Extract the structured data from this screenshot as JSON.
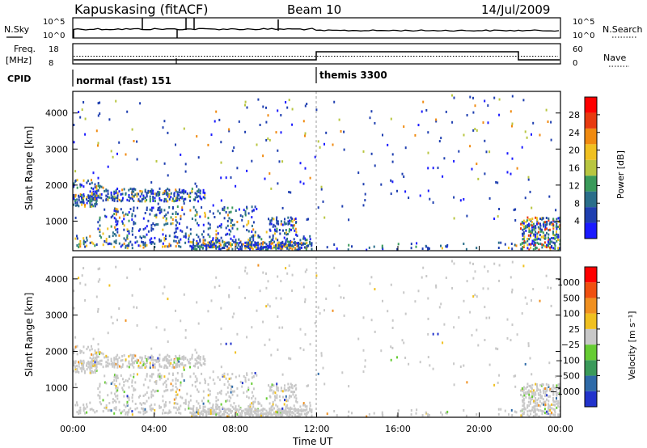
{
  "header": {
    "site": "Kapuskasing (fitACF)",
    "beam": "Beam 10",
    "date": "14/Jul/2009"
  },
  "panels": {
    "noise": {
      "left_label": "N.Sky",
      "right_label": "N.Search",
      "ticks_left": [
        "10^5",
        "10^0"
      ],
      "ticks_right": [
        "10^5",
        "10^0"
      ]
    },
    "freq": {
      "left_label_1": "Freq.",
      "left_label_2": "[MHz]",
      "right_label": "Nave",
      "ticks_left": [
        "18",
        "8"
      ],
      "ticks_right": [
        "60",
        "0"
      ]
    },
    "cpid": {
      "label": "CPID",
      "modes": [
        "normal (fast) 151",
        "themis 3300"
      ]
    }
  },
  "chart_data": [
    {
      "type": "heatmap",
      "name": "power",
      "ylabel": "Slant Range [km]",
      "yticks": [
        "4000",
        "3000",
        "2000",
        "1000"
      ],
      "ylim": [
        180,
        4600
      ],
      "xlim": [
        0,
        24
      ],
      "colorbar": {
        "label": "Power [dB]",
        "ticks": [
          "28",
          "24",
          "20",
          "16",
          "12",
          "8",
          "4"
        ],
        "range": [
          0,
          30
        ],
        "colors": [
          "#1a1aff",
          "#1f3fb0",
          "#2a6e8a",
          "#3a9a5a",
          "#b8c640",
          "#f0c020",
          "#f08a10",
          "#e83a10",
          "#ff0000"
        ]
      }
    },
    {
      "type": "heatmap",
      "name": "velocity",
      "ylabel": "Slant Range [km]",
      "yticks": [
        "4000",
        "3000",
        "2000",
        "1000"
      ],
      "ylim": [
        180,
        4600
      ],
      "xlim": [
        0,
        24
      ],
      "xticks": [
        "00:00",
        "04:00",
        "08:00",
        "12:00",
        "16:00",
        "20:00",
        "00:00"
      ],
      "xlabel": "Time UT",
      "colorbar": {
        "label": "Velocity [m s⁻¹]",
        "ticks": [
          "1000",
          "500",
          "100",
          "25",
          "−25",
          "−100",
          "−500",
          "−1000"
        ],
        "colors": [
          "#2233cc",
          "#2e6aa8",
          "#3a9a5a",
          "#66cc33",
          "#c8c8c8",
          "#f0c020",
          "#f09020",
          "#f05010",
          "#ff0000"
        ]
      }
    }
  ],
  "regions": {
    "cpid_change_hour": 12,
    "echo_bands": [
      {
        "t0": 0,
        "t1": 1.2,
        "r0": 1400,
        "r1": 1750,
        "density": 0.55
      },
      {
        "t0": 0.8,
        "t1": 6.5,
        "r0": 1550,
        "r1": 1900,
        "density": 0.4
      },
      {
        "t0": 0,
        "t1": 1.4,
        "r0": 1900,
        "r1": 2150,
        "density": 0.18
      },
      {
        "t0": 0,
        "t1": 11.8,
        "r0": 250,
        "r1": 600,
        "density": 0.22
      },
      {
        "t0": 5.8,
        "t1": 11.8,
        "r0": 200,
        "r1": 420,
        "density": 0.55
      },
      {
        "t0": 1.2,
        "t1": 9,
        "r0": 600,
        "r1": 1400,
        "density": 0.14
      },
      {
        "t0": 9.5,
        "t1": 11,
        "r0": 600,
        "r1": 1100,
        "density": 0.3
      },
      {
        "t0": 12,
        "t1": 22,
        "r0": 200,
        "r1": 400,
        "density": 0.06
      },
      {
        "t0": 22,
        "t1": 24,
        "r0": 200,
        "r1": 1100,
        "density": 0.45
      },
      {
        "t0": 0,
        "t1": 24,
        "r0": 1000,
        "r1": 4500,
        "density": 0.012
      }
    ]
  }
}
